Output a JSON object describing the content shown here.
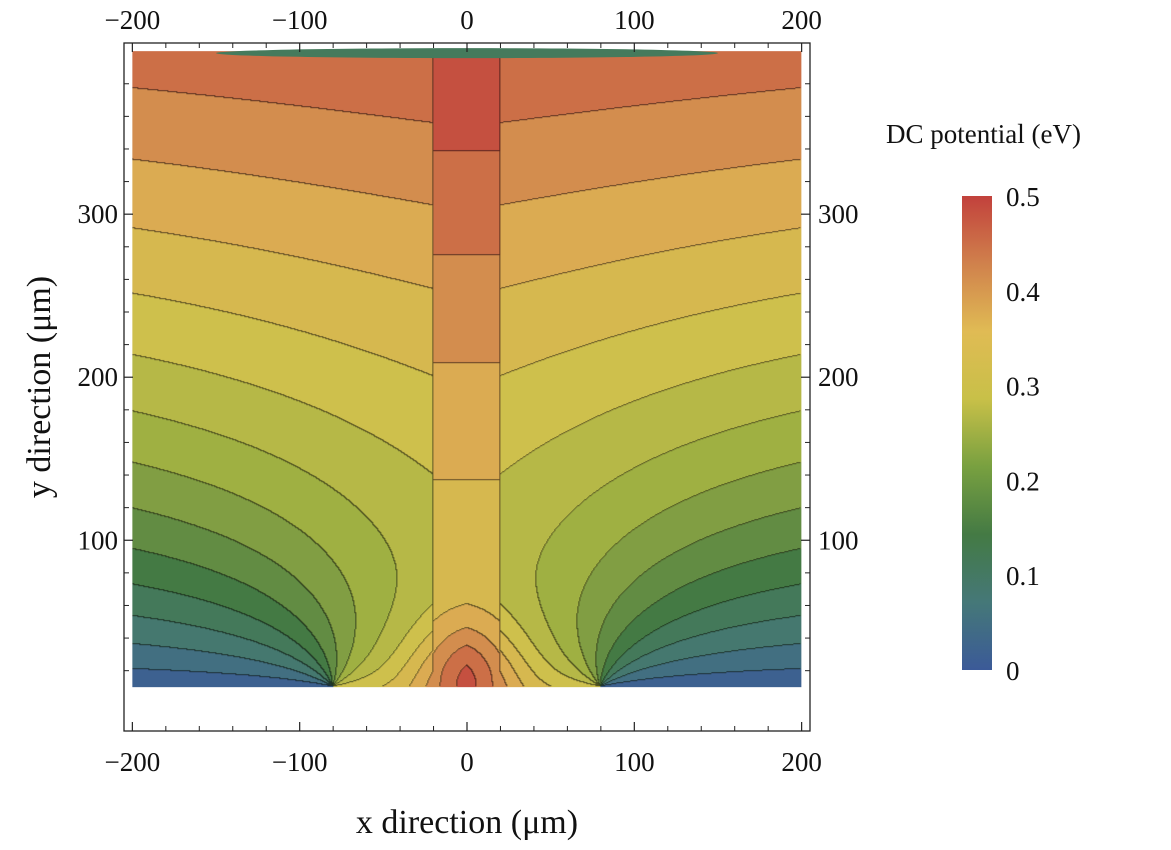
{
  "chart_data": {
    "type": "contour",
    "xlabel": "x direction (μm)",
    "ylabel": "y direction (μm)",
    "xlim": [
      -205,
      205
    ],
    "ylim": [
      -17,
      405
    ],
    "plot_region": {
      "x": [
        -200,
        200
      ],
      "y": [
        10,
        400
      ]
    },
    "x_ticks": [
      "−200",
      "−100",
      "0",
      "100",
      "200"
    ],
    "x_tick_values": [
      -200,
      -100,
      0,
      100,
      200
    ],
    "y_ticks": [
      "100",
      "200",
      "300"
    ],
    "y_tick_values": [
      100,
      200,
      300
    ],
    "grid": false,
    "frame_ticks_mirrored": true,
    "colorbar": {
      "title": "DC potential (eV)",
      "ticks": [
        "0",
        "0.1",
        "0.2",
        "0.3",
        "0.4",
        "0.5"
      ],
      "tick_values": [
        0,
        0.1,
        0.2,
        0.3,
        0.4,
        0.5
      ],
      "range": [
        0,
        0.5
      ],
      "colors": [
        "#3b5a98",
        "#457878",
        "#447a44",
        "#78a040",
        "#c8c048",
        "#e0bb54",
        "#d0814c",
        "#c2413c"
      ],
      "placement": "right"
    },
    "contour_levels": [
      0.0333,
      0.0667,
      0.1,
      0.1333,
      0.1667,
      0.2,
      0.2333,
      0.2667,
      0.3,
      0.3333,
      0.3667,
      0.4,
      0.4333,
      0.4667
    ],
    "field_model": {
      "description": "Potential rises from ~0.5 at top to ~0.32 in central saddle; bottom corners low (~0); bottom-center electrode peak (~0.48 at x=0,y=10); ground gaps near x=±80 at bottom.",
      "top_value": 0.5,
      "saddle_value": 0.32,
      "saddle_point": [
        0,
        160
      ],
      "corner_value": 0.0,
      "center_peak": {
        "x": 0,
        "y": 10,
        "value": 0.48
      },
      "electrode_edges_x": [
        -80,
        80
      ]
    },
    "colormap": [
      {
        "v": 0.0,
        "color": "#3b5a98"
      },
      {
        "v": 0.07,
        "color": "#457878"
      },
      {
        "v": 0.15,
        "color": "#447a44"
      },
      {
        "v": 0.25,
        "color": "#9fb042"
      },
      {
        "v": 0.32,
        "color": "#d0c14c"
      },
      {
        "v": 0.38,
        "color": "#dcae52"
      },
      {
        "v": 0.43,
        "color": "#d0814c"
      },
      {
        "v": 0.5,
        "color": "#c2413c"
      }
    ]
  }
}
